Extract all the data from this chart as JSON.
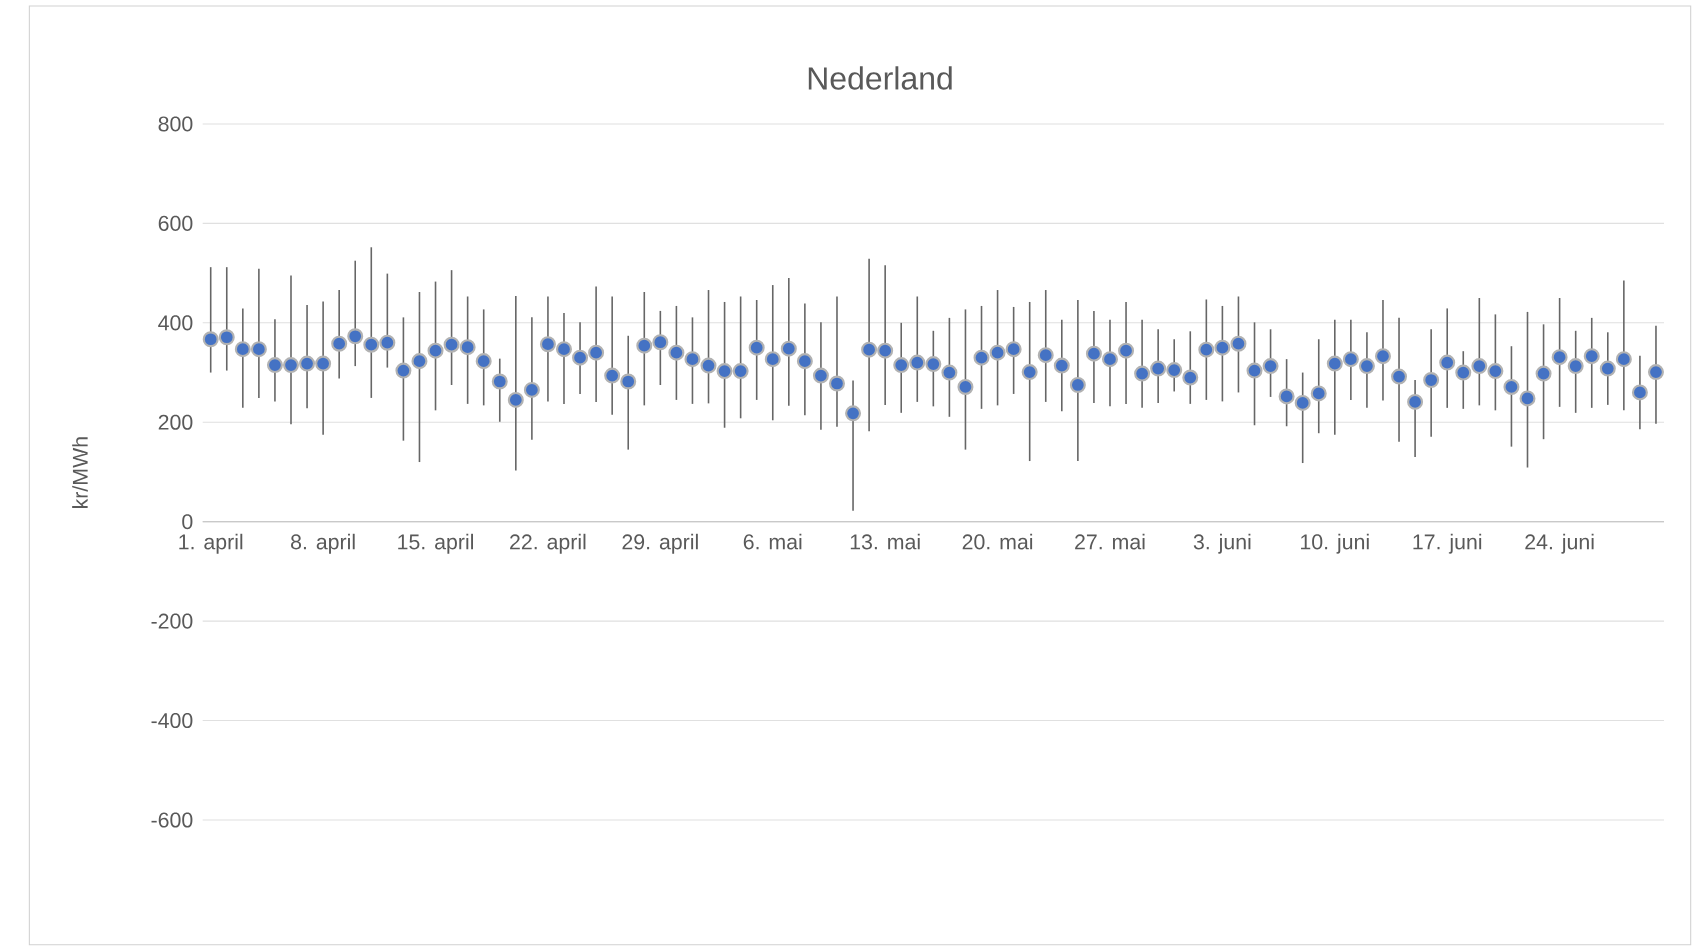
{
  "chart_data": {
    "type": "scatter",
    "title": "Nederland",
    "ylabel": "kr/MWh",
    "categories": [
      "1. april",
      null,
      null,
      null,
      null,
      null,
      null,
      "8. april",
      null,
      null,
      null,
      null,
      null,
      null,
      "15. april",
      null,
      null,
      null,
      null,
      null,
      null,
      "22. april",
      null,
      null,
      null,
      null,
      null,
      null,
      "29. april",
      null,
      null,
      null,
      null,
      null,
      null,
      "6. mai",
      null,
      null,
      null,
      null,
      null,
      null,
      "13. mai",
      null,
      null,
      null,
      null,
      null,
      null,
      "20. mai",
      null,
      null,
      null,
      null,
      null,
      null,
      "27. mai",
      null,
      null,
      null,
      null,
      null,
      null,
      "3. juni",
      null,
      null,
      null,
      null,
      null,
      null,
      "10. juni",
      null,
      null,
      null,
      null,
      null,
      null,
      "17. juni",
      null,
      null,
      null,
      null,
      null,
      null,
      "24. juni",
      null,
      null,
      null,
      null,
      null,
      null
    ],
    "series": [
      {
        "color": "#4472c4",
        "values": [
          367,
          371,
          347,
          347,
          315,
          315,
          318,
          318,
          358,
          373,
          356,
          360,
          304,
          323,
          344,
          356,
          351,
          323,
          282,
          245,
          265,
          357,
          347,
          330,
          340,
          294,
          282,
          354,
          361,
          340,
          327,
          314,
          303,
          303,
          350,
          327,
          348,
          323,
          294,
          278,
          218,
          346,
          344,
          315,
          320,
          317,
          300,
          271,
          330,
          340,
          347,
          301,
          335,
          314,
          275,
          338,
          327,
          344,
          298,
          308,
          305,
          290,
          346,
          350,
          358,
          304,
          313,
          252,
          239,
          258,
          318,
          327,
          313,
          333,
          292,
          241,
          285,
          320,
          300,
          313,
          303,
          271,
          248,
          298,
          331,
          313,
          333,
          308,
          327,
          260,
          301
        ],
        "errors": [
          [
            300,
            512
          ],
          [
            304,
            512
          ],
          [
            229,
            429
          ],
          [
            249,
            509
          ],
          [
            242,
            407
          ],
          [
            196,
            495
          ],
          [
            228,
            436
          ],
          [
            175,
            443
          ],
          [
            288,
            466
          ],
          [
            313,
            525
          ],
          [
            249,
            552
          ],
          [
            310,
            499
          ],
          [
            163,
            411
          ],
          [
            120,
            462
          ],
          [
            224,
            483
          ],
          [
            275,
            506
          ],
          [
            237,
            453
          ],
          [
            234,
            427
          ],
          [
            201,
            328
          ],
          [
            103,
            454
          ],
          [
            165,
            411
          ],
          [
            242,
            453
          ],
          [
            237,
            420
          ],
          [
            257,
            401
          ],
          [
            241,
            473
          ],
          [
            215,
            453
          ],
          [
            145,
            374
          ],
          [
            234,
            462
          ],
          [
            275,
            424
          ],
          [
            245,
            434
          ],
          [
            237,
            411
          ],
          [
            238,
            466
          ],
          [
            189,
            442
          ],
          [
            208,
            453
          ],
          [
            245,
            446
          ],
          [
            204,
            476
          ],
          [
            233,
            490
          ],
          [
            214,
            439
          ],
          [
            185,
            401
          ],
          [
            191,
            453
          ],
          [
            22,
            284
          ],
          [
            182,
            529
          ],
          [
            235,
            516
          ],
          [
            219,
            400
          ],
          [
            241,
            453
          ],
          [
            232,
            384
          ],
          [
            211,
            410
          ],
          [
            145,
            427
          ],
          [
            227,
            434
          ],
          [
            234,
            466
          ],
          [
            257,
            432
          ],
          [
            122,
            442
          ],
          [
            241,
            466
          ],
          [
            222,
            406
          ],
          [
            122,
            446
          ],
          [
            239,
            424
          ],
          [
            232,
            406
          ],
          [
            237,
            442
          ],
          [
            229,
            406
          ],
          [
            239,
            387
          ],
          [
            262,
            367
          ],
          [
            237,
            383
          ],
          [
            245,
            447
          ],
          [
            242,
            434
          ],
          [
            260,
            453
          ],
          [
            194,
            401
          ],
          [
            251,
            387
          ],
          [
            192,
            327
          ],
          [
            118,
            300
          ],
          [
            178,
            367
          ],
          [
            175,
            406
          ],
          [
            245,
            406
          ],
          [
            229,
            381
          ],
          [
            244,
            446
          ],
          [
            161,
            410
          ],
          [
            130,
            285
          ],
          [
            171,
            387
          ],
          [
            229,
            429
          ],
          [
            227,
            343
          ],
          [
            234,
            450
          ],
          [
            224,
            417
          ],
          [
            151,
            353
          ],
          [
            109,
            422
          ],
          [
            166,
            397
          ],
          [
            231,
            450
          ],
          [
            219,
            384
          ],
          [
            229,
            410
          ],
          [
            235,
            381
          ],
          [
            224,
            485
          ],
          [
            186,
            334
          ],
          [
            197,
            394
          ]
        ]
      }
    ],
    "ylim": [
      -600,
      800
    ],
    "yticks": [
      -600,
      -400,
      -200,
      0,
      200,
      400,
      600,
      800
    ],
    "grid": "y",
    "marker": "circle",
    "line_style": "none"
  }
}
